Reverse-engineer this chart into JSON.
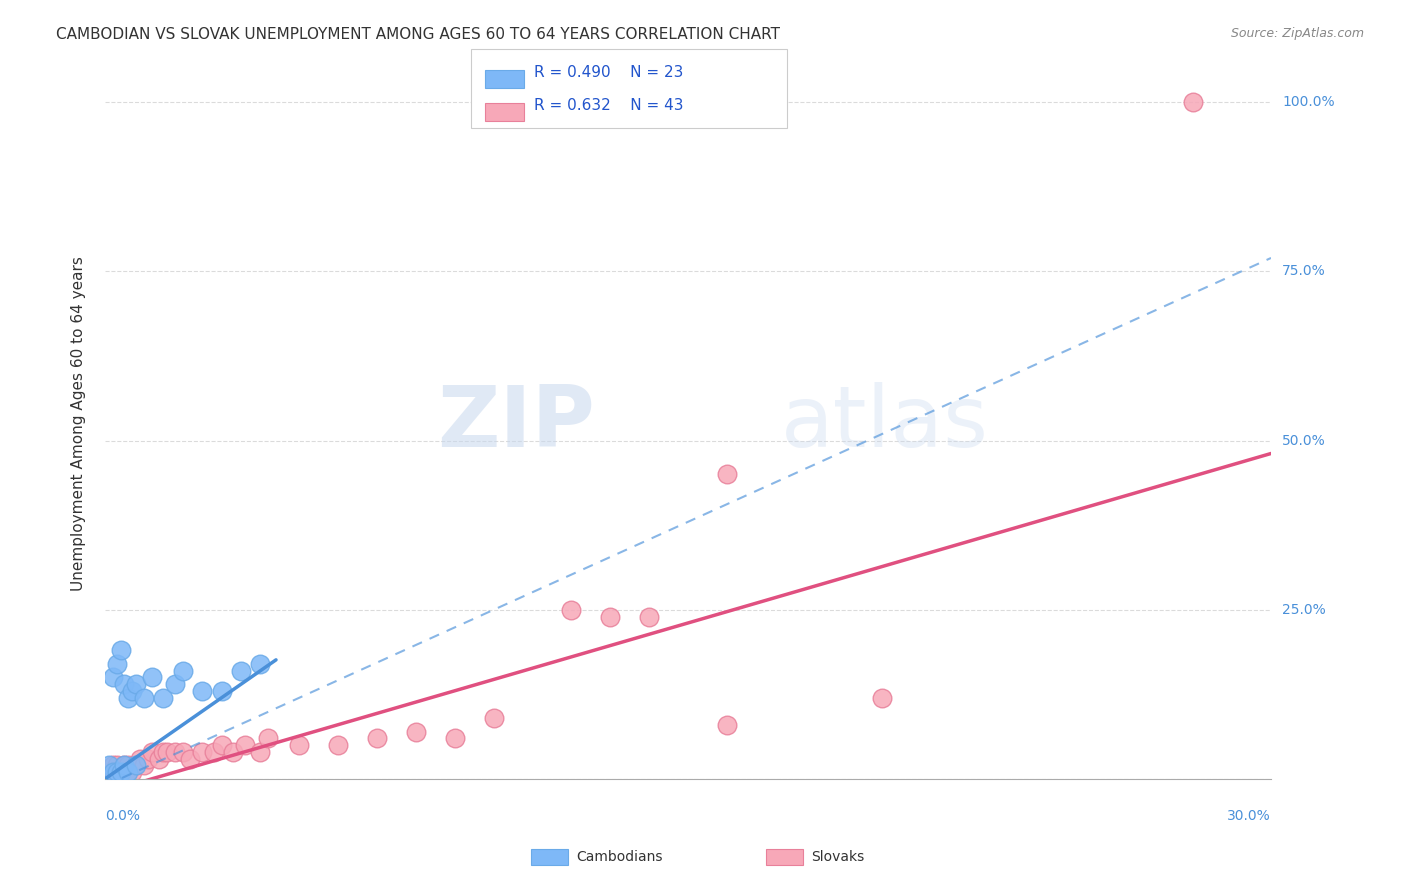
{
  "title": "CAMBODIAN VS SLOVAK UNEMPLOYMENT AMONG AGES 60 TO 64 YEARS CORRELATION CHART",
  "source": "Source: ZipAtlas.com",
  "ylabel": "Unemployment Among Ages 60 to 64 years",
  "xlim": [
    0.0,
    0.3
  ],
  "ylim": [
    0.0,
    1.05
  ],
  "legend_cambodian_R": "0.490",
  "legend_cambodian_N": "23",
  "legend_slovak_R": "0.632",
  "legend_slovak_N": "43",
  "cambodian_color": "#7eb8f7",
  "cambodian_edge": "#6aaae8",
  "slovak_color": "#f7a8b8",
  "slovak_edge": "#e8809a",
  "blue_line_color": "#4a90d9",
  "pink_line_color": "#e05080",
  "grid_color": "#cccccc",
  "background_color": "#ffffff",
  "watermark_zip": "ZIP",
  "watermark_atlas": "atlas",
  "camb_x": [
    0.001,
    0.002,
    0.002,
    0.003,
    0.003,
    0.004,
    0.004,
    0.005,
    0.005,
    0.006,
    0.006,
    0.007,
    0.008,
    0.008,
    0.01,
    0.012,
    0.015,
    0.018,
    0.02,
    0.025,
    0.03,
    0.035,
    0.04
  ],
  "camb_y": [
    0.02,
    0.01,
    0.15,
    0.17,
    0.01,
    0.19,
    0.01,
    0.14,
    0.02,
    0.12,
    0.01,
    0.13,
    0.14,
    0.02,
    0.12,
    0.15,
    0.12,
    0.14,
    0.16,
    0.13,
    0.13,
    0.16,
    0.17
  ],
  "slov_x": [
    0.001,
    0.002,
    0.002,
    0.003,
    0.003,
    0.004,
    0.004,
    0.005,
    0.005,
    0.006,
    0.006,
    0.007,
    0.008,
    0.009,
    0.01,
    0.011,
    0.012,
    0.014,
    0.015,
    0.016,
    0.018,
    0.02,
    0.022,
    0.025,
    0.028,
    0.03,
    0.033,
    0.036,
    0.04,
    0.042,
    0.05,
    0.06,
    0.07,
    0.08,
    0.09,
    0.1,
    0.12,
    0.14,
    0.16,
    0.2,
    0.13,
    0.16,
    0.28
  ],
  "slov_y": [
    0.01,
    0.01,
    0.02,
    0.01,
    0.02,
    0.01,
    0.01,
    0.02,
    0.01,
    0.02,
    0.01,
    0.01,
    0.02,
    0.03,
    0.02,
    0.03,
    0.04,
    0.03,
    0.04,
    0.04,
    0.04,
    0.04,
    0.03,
    0.04,
    0.04,
    0.05,
    0.04,
    0.05,
    0.04,
    0.06,
    0.05,
    0.05,
    0.06,
    0.07,
    0.06,
    0.09,
    0.25,
    0.24,
    0.08,
    0.12,
    0.24,
    0.45,
    1.0
  ],
  "ytick_vals": [
    0.0,
    0.25,
    0.5,
    0.75,
    1.0
  ],
  "ytick_labels": [
    "",
    "25.0%",
    "50.0%",
    "75.0%",
    "100.0%"
  ],
  "xtick_vals": [
    0.0,
    0.075,
    0.15,
    0.225,
    0.3
  ]
}
